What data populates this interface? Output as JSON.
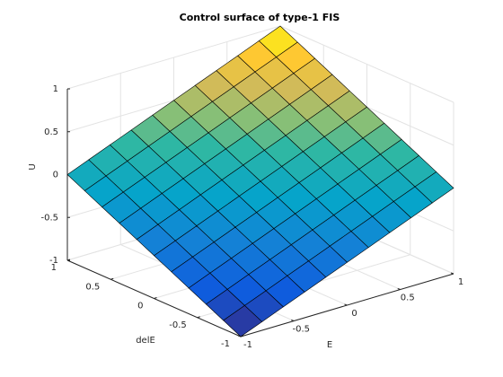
{
  "chart_data": {
    "type": "surface",
    "title": "Control surface of type-1 FIS",
    "xlabel": "E",
    "ylabel": "delE",
    "zlabel": "U",
    "x": [
      -1,
      -0.8,
      -0.6,
      -0.4,
      -0.2,
      0,
      0.2,
      0.4,
      0.6,
      0.8,
      1
    ],
    "y": [
      -1,
      -0.8,
      -0.6,
      -0.4,
      -0.2,
      0,
      0.2,
      0.4,
      0.6,
      0.8,
      1
    ],
    "z": [
      [
        -1,
        -0.9,
        -0.8,
        -0.7,
        -0.6,
        -0.5,
        -0.4,
        -0.3,
        -0.2,
        -0.1,
        0
      ],
      [
        -0.9,
        -0.8,
        -0.7,
        -0.6,
        -0.5,
        -0.4,
        -0.3,
        -0.2,
        -0.1,
        0,
        0.1
      ],
      [
        -0.8,
        -0.7,
        -0.6,
        -0.5,
        -0.4,
        -0.3,
        -0.2,
        -0.1,
        0,
        0.1,
        0.2
      ],
      [
        -0.7,
        -0.6,
        -0.5,
        -0.4,
        -0.3,
        -0.2,
        -0.1,
        0,
        0.1,
        0.2,
        0.3
      ],
      [
        -0.6,
        -0.5,
        -0.4,
        -0.3,
        -0.2,
        -0.1,
        0,
        0.1,
        0.2,
        0.3,
        0.4
      ],
      [
        -0.5,
        -0.4,
        -0.3,
        -0.2,
        -0.1,
        0,
        0.1,
        0.2,
        0.3,
        0.4,
        0.5
      ],
      [
        -0.4,
        -0.3,
        -0.2,
        -0.1,
        0,
        0.1,
        0.2,
        0.3,
        0.4,
        0.5,
        0.6
      ],
      [
        -0.3,
        -0.2,
        -0.1,
        0,
        0.1,
        0.2,
        0.3,
        0.4,
        0.5,
        0.6,
        0.7
      ],
      [
        -0.2,
        -0.1,
        0,
        0.1,
        0.2,
        0.3,
        0.4,
        0.5,
        0.6,
        0.7,
        0.8
      ],
      [
        -0.1,
        0,
        0.1,
        0.2,
        0.3,
        0.4,
        0.5,
        0.6,
        0.7,
        0.8,
        0.9
      ],
      [
        0,
        0.1,
        0.2,
        0.3,
        0.4,
        0.5,
        0.6,
        0.7,
        0.8,
        0.9,
        1
      ]
    ],
    "xlim": [
      -1,
      1
    ],
    "ylim": [
      -1,
      1
    ],
    "zlim": [
      -1,
      1
    ],
    "xticks": [
      -1,
      -0.5,
      0,
      0.5,
      1
    ],
    "yticks": [
      -1,
      -0.5,
      0,
      0.5,
      1
    ],
    "zticks": [
      -1,
      -0.5,
      0,
      0.5,
      1
    ],
    "grid": true,
    "colormap": "parula"
  }
}
